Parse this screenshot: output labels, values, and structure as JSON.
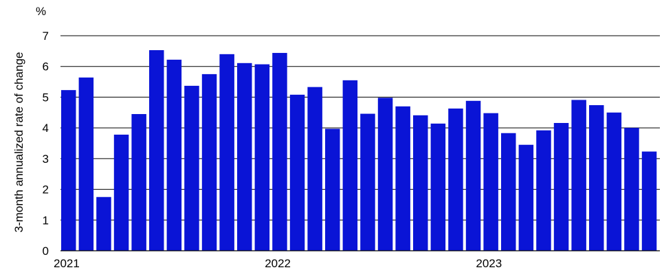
{
  "chart_data": {
    "type": "bar",
    "ylabel": "3-month annualized rate of change",
    "y_unit": "%",
    "ylim": [
      0,
      7
    ],
    "yticks": [
      "0",
      "1",
      "2",
      "3",
      "4",
      "5",
      "6",
      "7"
    ],
    "grid": true,
    "x_tick_labels": [
      {
        "label": "2021",
        "index": 0
      },
      {
        "label": "2022",
        "index": 12
      },
      {
        "label": "2023",
        "index": 24
      }
    ],
    "bar_color": "#0a14d6",
    "values": [
      5.23,
      5.64,
      1.75,
      3.78,
      4.45,
      6.53,
      6.22,
      5.37,
      5.75,
      6.4,
      6.11,
      6.07,
      6.44,
      5.08,
      5.33,
      3.97,
      5.55,
      4.46,
      4.98,
      4.7,
      4.41,
      4.14,
      4.63,
      4.88,
      4.48,
      3.83,
      3.45,
      3.92,
      4.16,
      4.91,
      4.74,
      4.5,
      4.0,
      3.23
    ]
  }
}
